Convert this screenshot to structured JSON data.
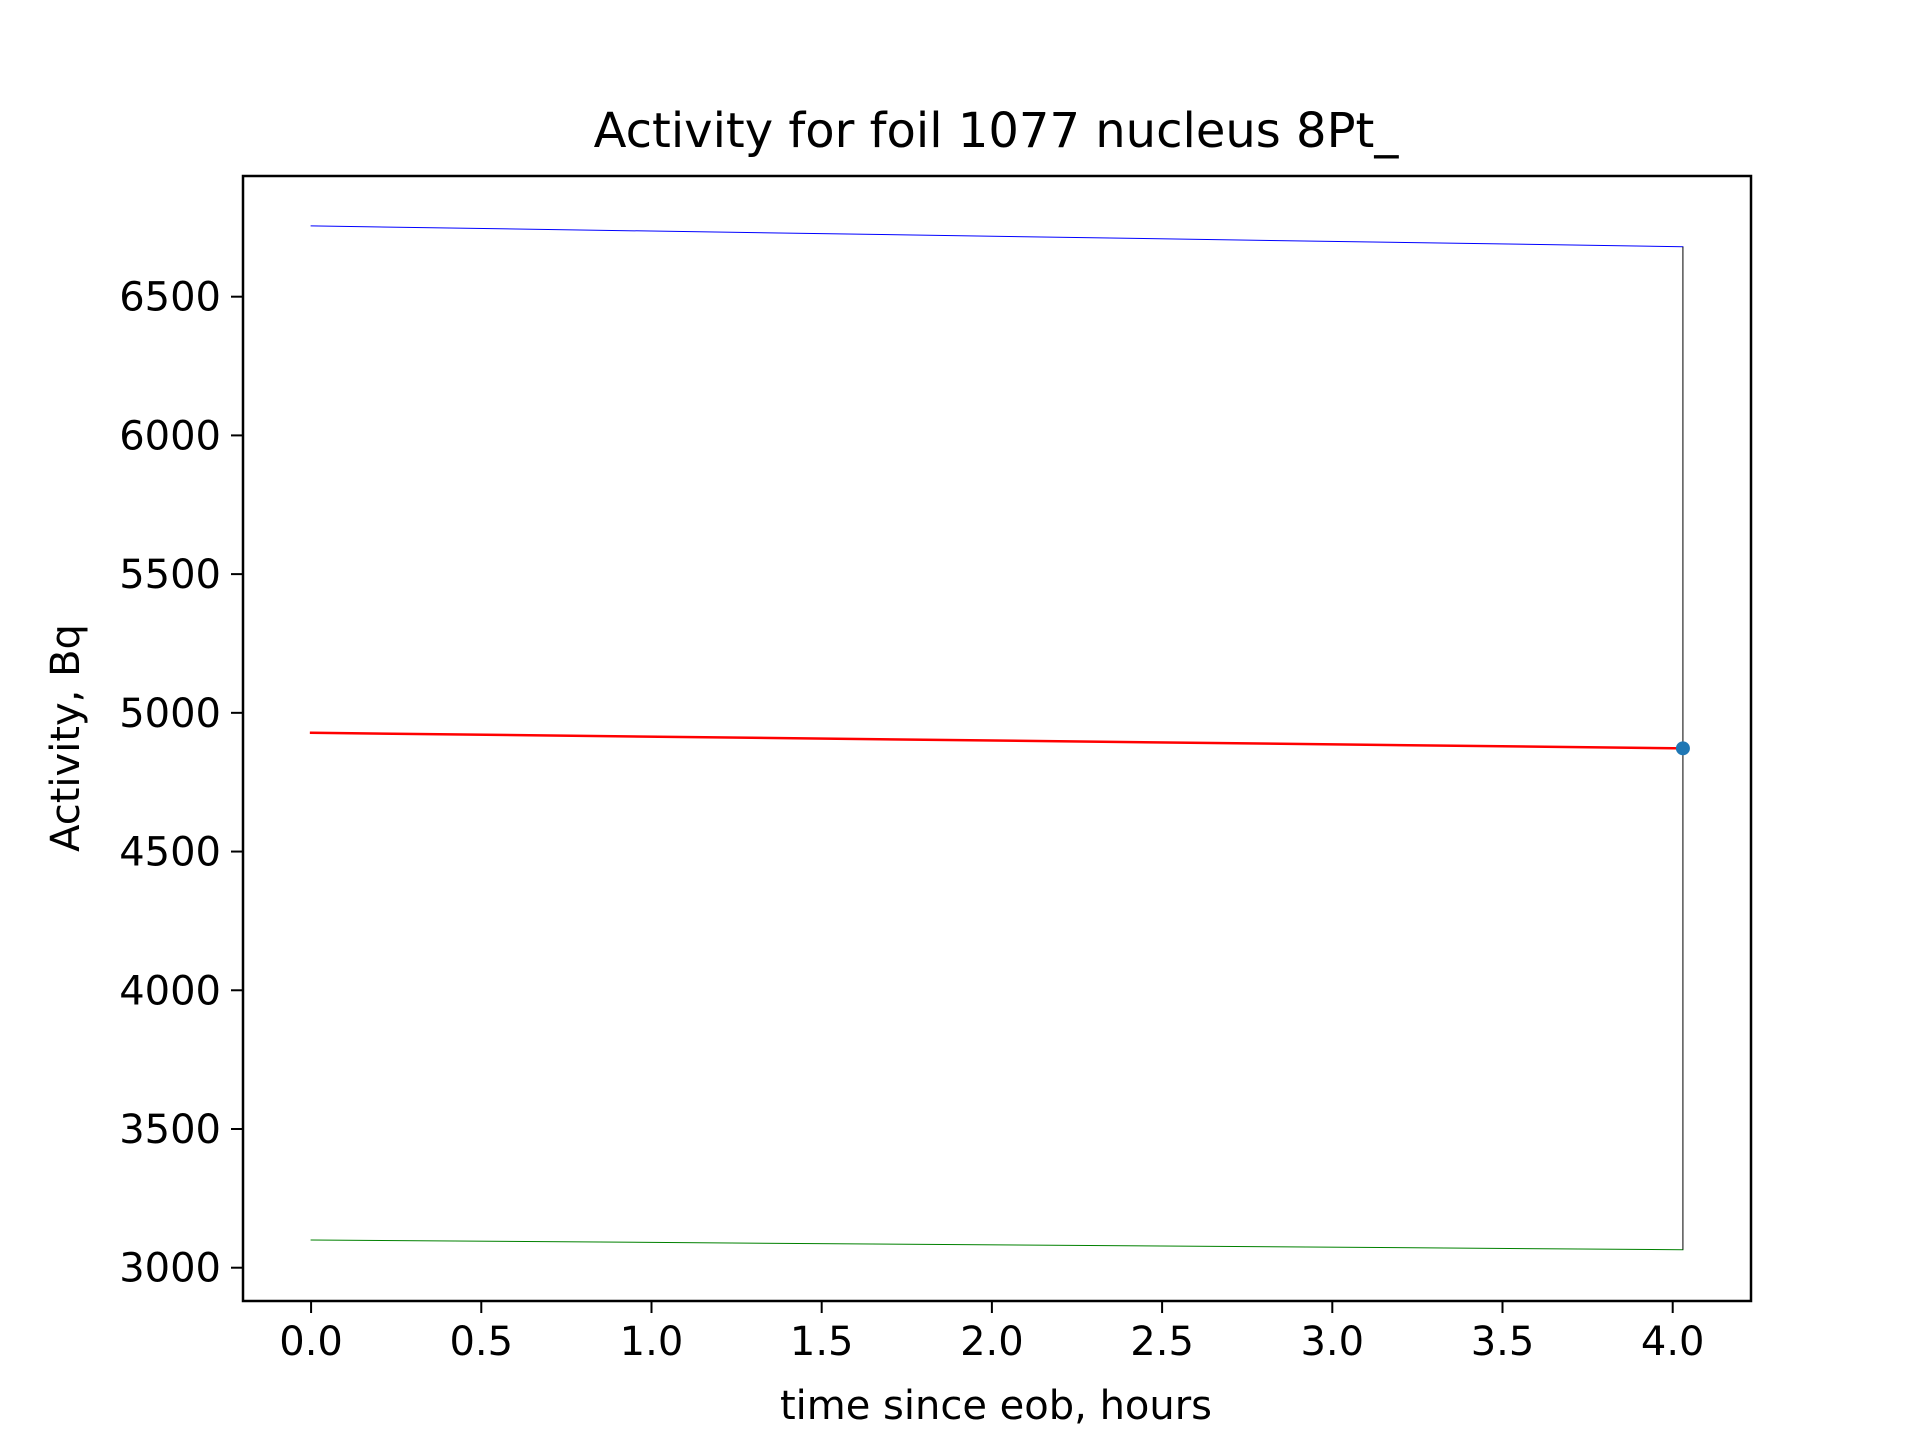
{
  "chart_data": {
    "type": "line",
    "title": "Activity for foil 1077 nucleus 8Pt_",
    "xlabel": "time since eob, hours",
    "ylabel": "Activity, Bq",
    "xlim": [
      -0.2,
      4.23
    ],
    "ylim": [
      2880,
      6935
    ],
    "xticks": [
      0.0,
      0.5,
      1.0,
      1.5,
      2.0,
      2.5,
      3.0,
      3.5,
      4.0
    ],
    "xtick_labels": [
      "0.0",
      "0.5",
      "1.0",
      "1.5",
      "2.0",
      "2.5",
      "3.0",
      "3.5",
      "4.0"
    ],
    "yticks": [
      3000,
      3500,
      4000,
      4500,
      5000,
      5500,
      6000,
      6500
    ],
    "ytick_labels": [
      "3000",
      "3500",
      "4000",
      "4500",
      "5000",
      "5500",
      "6000",
      "6500"
    ],
    "grid": false,
    "series": [
      {
        "color": "#0000ff",
        "width": 1,
        "x": [
          0.0,
          4.03
        ],
        "y": [
          6755,
          6680
        ]
      },
      {
        "color": "#ff0000",
        "width": 2.5,
        "x": [
          0.0,
          4.03
        ],
        "y": [
          4928,
          4872
        ]
      },
      {
        "color": "#008000",
        "width": 1,
        "x": [
          0.0,
          4.03
        ],
        "y": [
          3100,
          3065
        ]
      }
    ],
    "error_bar": {
      "color": "#000000",
      "width": 1,
      "x": 4.03,
      "y_low": 3065,
      "y_high": 6680
    },
    "measured_point": {
      "color": "#1f77b4",
      "x": 4.03,
      "y": 4872
    }
  }
}
